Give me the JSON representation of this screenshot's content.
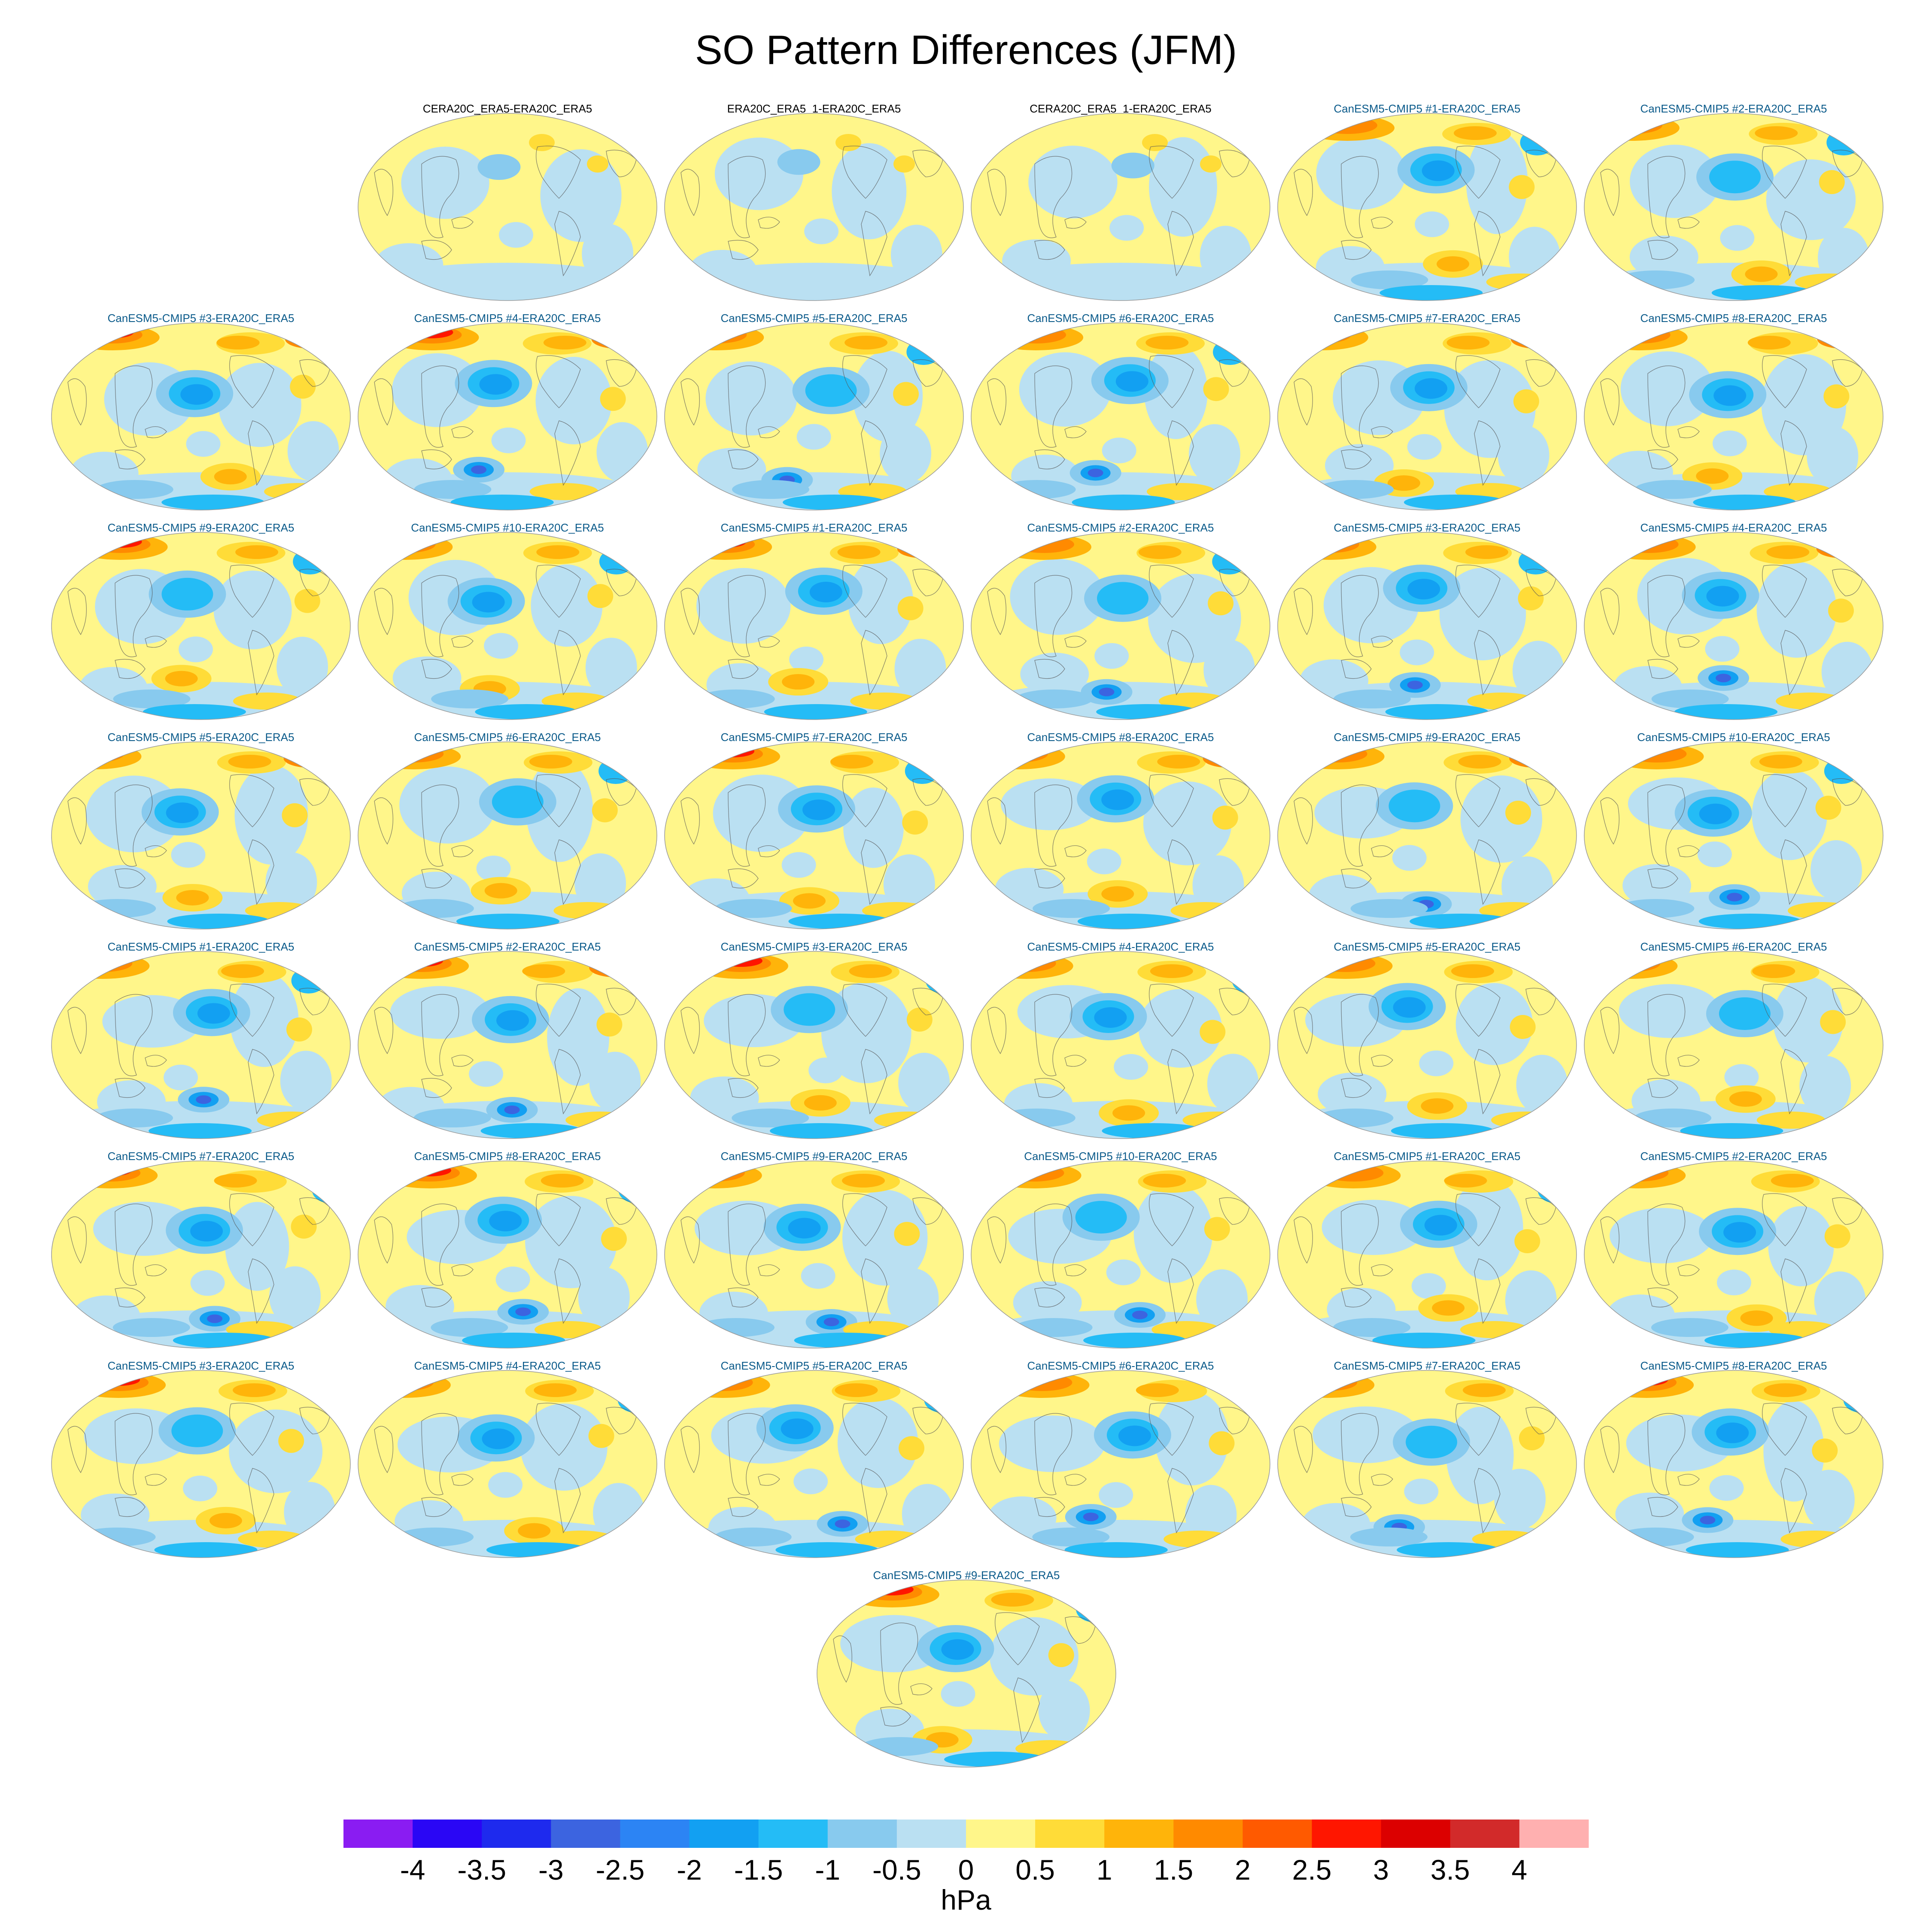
{
  "chart_data": {
    "type": "heatmap",
    "title": "SO Pattern Differences (JFM)",
    "projection": "global map (Pacific-centered ellipse)",
    "colorbar": {
      "label": "hPa",
      "tick_labels": [
        "-4",
        "-3.5",
        "-3",
        "-2.5",
        "-2",
        "-1.5",
        "-1",
        "-0.5",
        "0",
        "0.5",
        "1",
        "1.5",
        "2",
        "2.5",
        "3",
        "3.5",
        "4"
      ],
      "levels": [
        -4,
        -3.5,
        -3,
        -2.5,
        -2,
        -1.5,
        -1,
        -0.5,
        0,
        0.5,
        1,
        1.5,
        2,
        2.5,
        3,
        3.5,
        4
      ],
      "colors": [
        "#8A1CF2",
        "#2A06F5",
        "#1E2AEE",
        "#3C64E0",
        "#2C84F4",
        "#12A0F2",
        "#24BCF6",
        "#88CAEE",
        "#BAE0F2",
        "#FFF68A",
        "#FFDC38",
        "#FFB40A",
        "#FF8A00",
        "#FF5A00",
        "#FF1600",
        "#DC0000",
        "#D22A2A",
        "#FFB0B0"
      ]
    },
    "panels": [
      {
        "title": "CERA20C_ERA5-ERA20C_ERA5",
        "obs": true
      },
      {
        "title": "ERA20C_ERA5_1-ERA20C_ERA5",
        "obs": true
      },
      {
        "title": "CERA20C_ERA5_1-ERA20C_ERA5",
        "obs": true
      },
      {
        "title": "CanESM5-CMIP5 #1-ERA20C_ERA5",
        "obs": false
      },
      {
        "title": "CanESM5-CMIP5 #2-ERA20C_ERA5",
        "obs": false
      },
      {
        "title": "CanESM5-CMIP5 #3-ERA20C_ERA5",
        "obs": false
      },
      {
        "title": "CanESM5-CMIP5 #4-ERA20C_ERA5",
        "obs": false
      },
      {
        "title": "CanESM5-CMIP5 #5-ERA20C_ERA5",
        "obs": false
      },
      {
        "title": "CanESM5-CMIP5 #6-ERA20C_ERA5",
        "obs": false
      },
      {
        "title": "CanESM5-CMIP5 #7-ERA20C_ERA5",
        "obs": false
      },
      {
        "title": "CanESM5-CMIP5 #8-ERA20C_ERA5",
        "obs": false
      },
      {
        "title": "CanESM5-CMIP5 #9-ERA20C_ERA5",
        "obs": false
      },
      {
        "title": "CanESM5-CMIP5 #10-ERA20C_ERA5",
        "obs": false
      },
      {
        "title": "CanESM5-CMIP5 #1-ERA20C_ERA5",
        "obs": false
      },
      {
        "title": "CanESM5-CMIP5 #2-ERA20C_ERA5",
        "obs": false
      },
      {
        "title": "CanESM5-CMIP5 #3-ERA20C_ERA5",
        "obs": false
      },
      {
        "title": "CanESM5-CMIP5 #4-ERA20C_ERA5",
        "obs": false
      },
      {
        "title": "CanESM5-CMIP5 #5-ERA20C_ERA5",
        "obs": false
      },
      {
        "title": "CanESM5-CMIP5 #6-ERA20C_ERA5",
        "obs": false
      },
      {
        "title": "CanESM5-CMIP5 #7-ERA20C_ERA5",
        "obs": false
      },
      {
        "title": "CanESM5-CMIP5 #8-ERA20C_ERA5",
        "obs": false
      },
      {
        "title": "CanESM5-CMIP5 #9-ERA20C_ERA5",
        "obs": false
      },
      {
        "title": "CanESM5-CMIP5 #10-ERA20C_ERA5",
        "obs": false
      },
      {
        "title": "CanESM5-CMIP5 #1-ERA20C_ERA5",
        "obs": false
      },
      {
        "title": "CanESM5-CMIP5 #2-ERA20C_ERA5",
        "obs": false
      },
      {
        "title": "CanESM5-CMIP5 #3-ERA20C_ERA5",
        "obs": false
      },
      {
        "title": "CanESM5-CMIP5 #4-ERA20C_ERA5",
        "obs": false
      },
      {
        "title": "CanESM5-CMIP5 #5-ERA20C_ERA5",
        "obs": false
      },
      {
        "title": "CanESM5-CMIP5 #6-ERA20C_ERA5",
        "obs": false
      },
      {
        "title": "CanESM5-CMIP5 #7-ERA20C_ERA5",
        "obs": false
      },
      {
        "title": "CanESM5-CMIP5 #8-ERA20C_ERA5",
        "obs": false
      },
      {
        "title": "CanESM5-CMIP5 #9-ERA20C_ERA5",
        "obs": false
      },
      {
        "title": "CanESM5-CMIP5 #10-ERA20C_ERA5",
        "obs": false
      },
      {
        "title": "CanESM5-CMIP5 #1-ERA20C_ERA5",
        "obs": false
      },
      {
        "title": "CanESM5-CMIP5 #2-ERA20C_ERA5",
        "obs": false
      },
      {
        "title": "CanESM5-CMIP5 #3-ERA20C_ERA5",
        "obs": false
      },
      {
        "title": "CanESM5-CMIP5 #4-ERA20C_ERA5",
        "obs": false
      },
      {
        "title": "CanESM5-CMIP5 #5-ERA20C_ERA5",
        "obs": false
      },
      {
        "title": "CanESM5-CMIP5 #6-ERA20C_ERA5",
        "obs": false
      },
      {
        "title": "CanESM5-CMIP5 #7-ERA20C_ERA5",
        "obs": false
      },
      {
        "title": "CanESM5-CMIP5 #8-ERA20C_ERA5",
        "obs": false
      },
      {
        "title": "CanESM5-CMIP5 #9-ERA20C_ERA5",
        "obs": false
      }
    ],
    "title_colors": {
      "obs": "#000000",
      "model": "#0A5A8A"
    }
  }
}
